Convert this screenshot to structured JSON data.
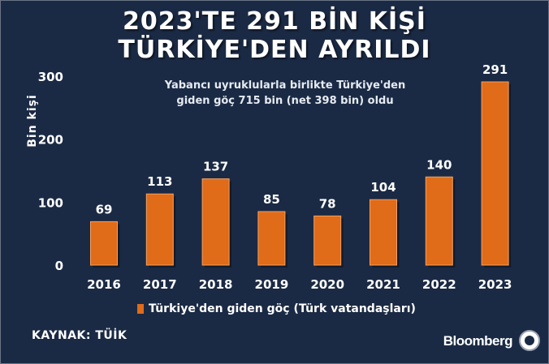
{
  "header": {
    "title_line1": "2023'TE 291 BİN KİŞİ",
    "title_line2": "TÜRKİYE'DEN AYRILDI",
    "subtitle_line1": "Yabancı uyruklularla birlikte Türkiye'den",
    "subtitle_line2": "giden göç 715 bin (net 398 bin) oldu"
  },
  "footer": {
    "source": "KAYNAK: TÜİK",
    "brand": "Bloomberg"
  },
  "colors": {
    "background": "#1b2a44",
    "bar": "#e06b18",
    "text": "#ffffff"
  },
  "chart_data": {
    "type": "bar",
    "title": "2023'TE 291 BİN KİŞİ TÜRKİYE'DEN AYRILDI",
    "subtitle": "Yabancı uyruklularla birlikte Türkiye'den giden göç 715 bin (net 398 bin) oldu",
    "xlabel": "",
    "ylabel": "Bin kişi",
    "categories": [
      "2016",
      "2017",
      "2018",
      "2019",
      "2020",
      "2021",
      "2022",
      "2023"
    ],
    "series": [
      {
        "name": "Türkiye'den giden göç (Türk vatandaşları)",
        "values": [
          69,
          113,
          137,
          85,
          78,
          104,
          140,
          291
        ]
      }
    ],
    "yticks": [
      0,
      100,
      200,
      300
    ],
    "ylim": [
      0,
      300
    ],
    "grid": false,
    "legend": "bottom-center",
    "data_labels": true
  }
}
